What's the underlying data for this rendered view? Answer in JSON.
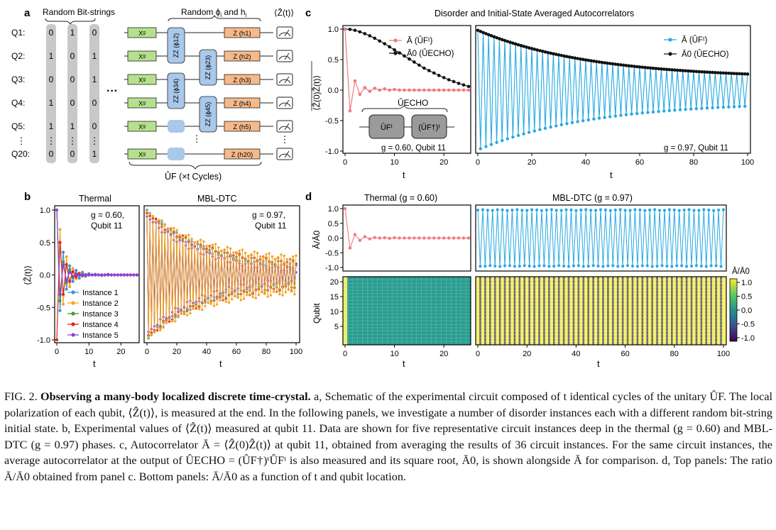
{
  "panel_a": {
    "label": "a",
    "bit_header": "Random Bit-strings",
    "param_header": "Random ϕ",
    "param_header_sub": "i",
    "param_header_and": " and h",
    "meas_header": "⟨Ẑ(t)⟩",
    "qubit_labels": [
      "Q1:",
      "Q2:",
      "Q3:",
      "Q4:",
      "Q5:",
      "Q20:"
    ],
    "bit_columns": [
      [
        "0",
        "1",
        "0",
        "1",
        "1",
        "0"
      ],
      [
        "1",
        "0",
        "0",
        "0",
        "1",
        "0"
      ],
      [
        "0",
        "1",
        "1",
        "0",
        "0",
        "1"
      ]
    ],
    "x_gate": "Xᵍ",
    "zz_labels": [
      "ZZ (ϕ12)",
      "ZZ (ϕ23)",
      "ZZ (ϕ34)",
      "ZZ (ϕ45)"
    ],
    "z_labels": [
      "Z (h1)",
      "Z (h2)",
      "Z (h3)",
      "Z (h4)",
      "Z (h5)",
      "Z (h20)"
    ],
    "ellipsis": "···",
    "vdots": "⋮",
    "cycle_label": "ÛF (×t Cycles)"
  },
  "panel_b": {
    "label": "b",
    "left_title": "Thermal",
    "right_title": "MBL-DTC",
    "left_note": [
      "g = 0.60,",
      "Qubit 11"
    ],
    "right_note": [
      "g = 0.97,",
      "Qubit 11"
    ],
    "ylabel": "⟨Ẑ(t)⟩",
    "xlabel": "t",
    "legend": [
      "Instance 1",
      "Instance 2",
      "Instance 3",
      "Instance 4",
      "Instance 5"
    ]
  },
  "panel_c": {
    "label": "c",
    "title": "Disorder and Initial-State Averaged Autocorrelators",
    "ylabel": "⟨Ẑ(0)Ẑ(t)⟩",
    "xlabel": "t",
    "legend": [
      "Ā (ÛFᵗ)",
      "Ā0 (ÛECHO)"
    ],
    "left_note": "g = 0.60, Qubit 11",
    "right_note": "g = 0.97, Qubit 11",
    "inset_title": "ÛECHO",
    "inset_boxes": [
      "ÛFᵗ",
      "(ÛF†)ᵗ"
    ]
  },
  "panel_d": {
    "label": "d",
    "left_title": "Thermal (g = 0.60)",
    "right_title": "MBL-DTC (g = 0.97)",
    "ylabel_top": "Ā/Ā0",
    "ylabel_bottom": "Qubit",
    "xlabel": "t",
    "colorbar_title": "Ā/Ā0",
    "colorbar_ticks": [
      "1.0",
      "0.5",
      "0.0",
      "-0.5",
      "-1.0"
    ]
  },
  "colors": {
    "pink": "#f07a7f",
    "black": "#111111",
    "blue": "#27a9e1",
    "instances": [
      "#3b8fe0",
      "#f3a524",
      "#3c9a3c",
      "#e0201f",
      "#8e3fd6"
    ],
    "teal": "#2a9d8f",
    "yellow": "#f4ef6a",
    "green_gate": "#b6e08e",
    "blue_gate": "#a9c8ea",
    "orange_gate": "#f5b98a"
  },
  "chart_data": [
    {
      "type": "line",
      "panel": "b-thermal",
      "title": "Thermal",
      "xlabel": "t",
      "ylabel": "⟨Ẑ(t)⟩",
      "xlim": [
        0,
        25
      ],
      "ylim": [
        -1.0,
        1.0
      ],
      "x_ticks": [
        "0",
        "10",
        "20"
      ],
      "y_ticks": [
        "1.0",
        "0.5",
        "0.0",
        "-0.5",
        "-1.0"
      ],
      "series": [
        {
          "name": "Instance 1",
          "values": [
            1.0,
            -0.55,
            0.35,
            -0.22,
            0.14,
            -0.1,
            0.07,
            -0.05,
            0.04,
            -0.02,
            0.02,
            0.0,
            0.01,
            0.0,
            -0.01,
            0.0,
            0.01,
            0.0,
            0.0,
            0.0,
            0.0,
            0.0,
            0.0,
            0.0,
            0.0,
            0.0
          ]
        },
        {
          "name": "Instance 2",
          "values": [
            -1.0,
            0.7,
            -0.45,
            0.28,
            -0.18,
            0.1,
            -0.06,
            0.03,
            -0.02,
            0.01,
            0.0,
            0.0,
            0.0,
            0.0,
            0.0,
            0.0,
            0.0,
            0.0,
            0.0,
            0.0,
            0.0,
            0.0,
            0.0,
            0.0,
            0.0,
            0.0
          ]
        },
        {
          "name": "Instance 3",
          "values": [
            1.0,
            -0.4,
            0.2,
            -0.12,
            0.08,
            -0.04,
            0.02,
            0.01,
            0.0,
            0.0,
            0.0,
            0.0,
            0.0,
            0.0,
            0.0,
            0.0,
            0.0,
            0.0,
            0.0,
            0.0,
            0.0,
            0.0,
            0.0,
            0.0,
            0.0,
            0.0
          ]
        },
        {
          "name": "Instance 4",
          "values": [
            -1.0,
            0.5,
            -0.3,
            0.16,
            -0.1,
            0.05,
            -0.03,
            0.02,
            -0.01,
            0.0,
            0.0,
            0.0,
            0.0,
            0.0,
            0.0,
            0.0,
            0.0,
            0.0,
            0.0,
            0.0,
            0.0,
            0.0,
            0.0,
            0.0,
            0.0,
            0.0
          ]
        },
        {
          "name": "Instance 5",
          "values": [
            1.0,
            -0.3,
            0.15,
            -0.08,
            0.04,
            -0.02,
            0.01,
            0.0,
            0.0,
            0.0,
            0.0,
            0.0,
            0.0,
            0.0,
            0.0,
            0.0,
            0.0,
            0.0,
            0.0,
            0.0,
            0.0,
            0.0,
            0.0,
            0.0,
            0.0,
            0.0
          ]
        }
      ]
    },
    {
      "type": "line",
      "panel": "b-mbl",
      "title": "MBL-DTC",
      "xlabel": "t",
      "xlim": [
        0,
        100
      ],
      "ylim": [
        -1.0,
        1.0
      ],
      "x_ticks": [
        "0",
        "20",
        "40",
        "60",
        "80",
        "100"
      ],
      "series_envelopes": [
        {
          "name": "Instance 1",
          "start": 1.0,
          "end": 0.12
        },
        {
          "name": "Instance 2",
          "start": 0.98,
          "end": 0.26
        },
        {
          "name": "Instance 3",
          "start": 0.96,
          "end": 0.16
        },
        {
          "name": "Instance 4",
          "start": 0.95,
          "end": 0.2
        },
        {
          "name": "Instance 5",
          "start": 0.9,
          "end": 0.08
        }
      ]
    },
    {
      "type": "line",
      "panel": "c-thermal",
      "xlabel": "t",
      "ylabel": "⟨Ẑ(0)Ẑ(t)⟩",
      "xlim": [
        0,
        25
      ],
      "ylim": [
        -1.0,
        1.0
      ],
      "x_ticks": [
        "0",
        "10",
        "20"
      ],
      "y_ticks": [
        "1.0",
        "0.5",
        "0.0",
        "-0.5",
        "-1.0"
      ],
      "series": [
        {
          "name": "Ā (ÛFᵗ)",
          "values": [
            1.0,
            -0.34,
            0.15,
            -0.07,
            0.04,
            -0.02,
            0.03,
            0.0,
            0.02,
            0.0,
            0.01,
            0.0,
            0.0,
            0.0,
            0.0,
            0.0,
            0.0,
            0.0,
            0.0,
            0.0,
            0.0,
            0.0,
            0.0,
            0.0,
            0.0,
            0.0
          ]
        },
        {
          "name": "Ā0 (ÛECHO)",
          "values": [
            1.0,
            0.995,
            0.98,
            0.955,
            0.925,
            0.89,
            0.85,
            0.805,
            0.76,
            0.71,
            0.66,
            0.61,
            0.56,
            0.51,
            0.46,
            0.41,
            0.36,
            0.32,
            0.28,
            0.24,
            0.205,
            0.17,
            0.14,
            0.11,
            0.085,
            0.06
          ]
        }
      ]
    },
    {
      "type": "line",
      "panel": "c-mbl",
      "xlabel": "t",
      "xlim": [
        0,
        100
      ],
      "ylim": [
        -1.0,
        1.0
      ],
      "x_ticks": [
        "0",
        "20",
        "40",
        "60",
        "80",
        "100"
      ],
      "series": [
        {
          "name": "Ā (ÛFᵗ)",
          "envelope_start": 0.98,
          "envelope_end": 0.19,
          "alternating": true
        },
        {
          "name": "Ā0 (ÛECHO)",
          "envelope_start": 0.98,
          "envelope_end": 0.19,
          "alternating": false
        }
      ]
    },
    {
      "type": "line",
      "panel": "d-top",
      "ylabel": "Ā/Ā0",
      "y_ticks": [
        "1.0",
        "0.5",
        "0.0",
        "-0.5",
        "-1.0"
      ],
      "series": [
        {
          "name": "Thermal (g = 0.60)",
          "values": [
            1.0,
            -0.34,
            0.12,
            -0.08,
            0.05,
            -0.03,
            0.02,
            0.0,
            0.01,
            -0.01,
            0.01,
            0.0,
            0.0,
            0.0,
            0.0,
            0.0,
            0.0,
            0.0,
            0.0,
            0.0,
            0.0,
            0.0,
            0.0,
            0.0,
            0.0,
            0.0
          ]
        },
        {
          "name": "MBL-DTC (g = 0.97)",
          "amplitude": 0.96,
          "alternating": true
        }
      ]
    },
    {
      "type": "heatmap",
      "panel": "d-bottom",
      "ylabel": "Qubit",
      "xlabel": "t",
      "y_ticks": [
        "20",
        "15",
        "10",
        "5"
      ],
      "zlim": [
        -1.0,
        1.0
      ],
      "thermal": {
        "first_column": 1.0,
        "rest": 0.0
      },
      "mbl": {
        "pattern": "alternating ±1"
      }
    }
  ],
  "caption": {
    "fig_label": "FIG. 2.",
    "fig_title": "Observing a many-body localized discrete time-crystal.",
    "text": " a, Schematic of the experimental circuit composed of t identical cycles of the unitary ÛF. The local polarization of each qubit, ⟨Ẑ(t)⟩, is measured at the end. In the following panels, we investigate a number of disorder instances each with a different random bit-string initial state. b, Experimental values of ⟨Ẑ(t)⟩ measured at qubit 11. Data are shown for five representative circuit instances deep in the thermal (g = 0.60) and MBL-DTC (g = 0.97) phases. c, Autocorrelator Ā = ⟨Ẑ(0)Ẑ(t)⟩ at qubit 11, obtained from averaging the results of 36 circuit instances. For the same circuit instances, the average autocorrelator at the output of ÛECHO = (ÛF†)ᵗÛFᵗ is also measured and its square root, Ā0, is shown alongside Ā for comparison. d, Top panels: The ratio Ā/Ā0 obtained from panel c. Bottom panels: Ā/Ā0 as a function of t and qubit location."
  }
}
